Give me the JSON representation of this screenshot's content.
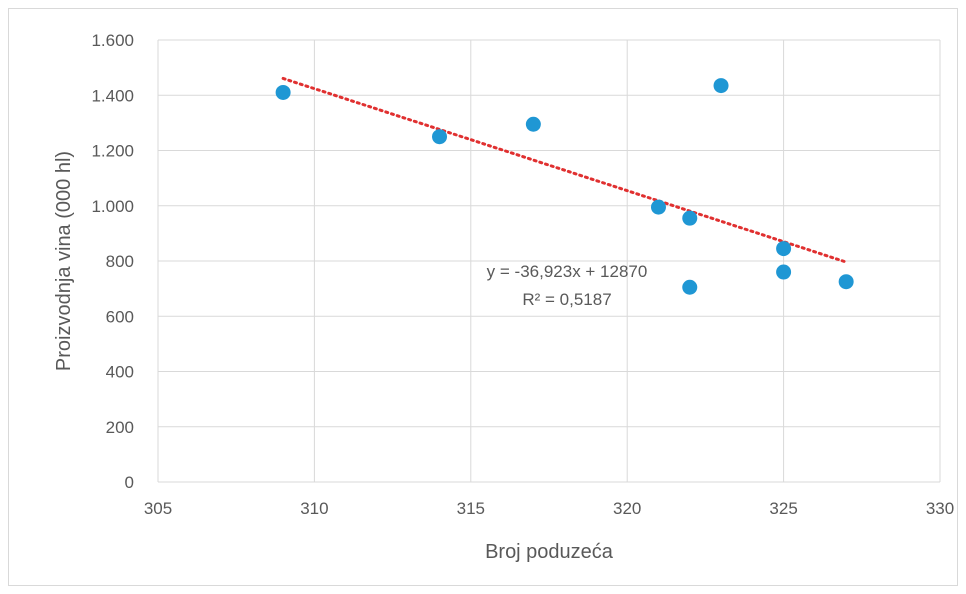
{
  "chart_data": {
    "type": "scatter",
    "title": "",
    "xlabel": "Broj poduzeća",
    "ylabel": "Proizvodnja vina (000 hl)",
    "xlim": [
      305,
      330
    ],
    "ylim": [
      0,
      1600
    ],
    "x_ticks": [
      305,
      310,
      315,
      320,
      325,
      330
    ],
    "x_tick_labels": [
      "305",
      "310",
      "315",
      "320",
      "325",
      "330"
    ],
    "y_ticks": [
      0,
      200,
      400,
      600,
      800,
      1000,
      1200,
      1400,
      1600
    ],
    "y_tick_labels": [
      "0",
      "200",
      "400",
      "600",
      "800",
      "1.000",
      "1.200",
      "1.400",
      "1.600"
    ],
    "grid": true,
    "legend": "none",
    "series": [
      {
        "x": [
          309,
          314,
          317,
          321,
          322,
          323,
          322,
          325,
          325,
          327
        ],
        "y": [
          1410,
          1250,
          1295,
          995,
          955,
          1435,
          705,
          845,
          760,
          725
        ],
        "color": "#1f97d4"
      }
    ],
    "trendline": {
      "type": "linear",
      "slope": -36.923,
      "intercept": 12870,
      "x_range": [
        309,
        327
      ],
      "color": "#e03030",
      "style": "dotted"
    },
    "annotations": {
      "equation": "y = -36,923x + 12870",
      "r_squared": "R² = 0,5187"
    }
  }
}
